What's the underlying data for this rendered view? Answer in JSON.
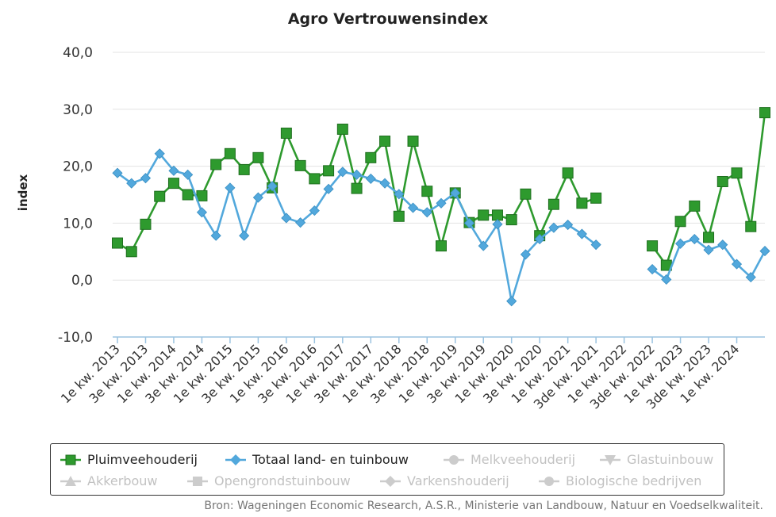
{
  "chart_data": {
    "type": "line",
    "title": "Agro Vertrouwensindex",
    "ylabel": "index",
    "xlabel": "",
    "ylim": [
      -10,
      40
    ],
    "yticks": [
      "-10,0",
      "0,0",
      "10,0",
      "20,0",
      "30,0",
      "40,0"
    ],
    "yticks_values": [
      -10,
      0,
      10,
      20,
      30,
      40
    ],
    "grid": true,
    "x_labels": [
      "1e kw. 2013",
      "3e kw. 2013",
      "1e kw. 2014",
      "3e kw. 2014",
      "1e kw. 2015",
      "3e kw. 2015",
      "1e kw. 2016",
      "3e kw. 2016",
      "1e kw. 2017",
      "3e kw. 2017",
      "1e kw. 2018",
      "3e kw. 2018",
      "1e kw. 2019",
      "3e kw. 2019",
      "1e kw. 2020",
      "3e kw. 2020",
      "1e kw. 2021",
      "3de kw. 2021",
      "1e kw. 2022",
      "3de kw. 2022",
      "1e kw. 2023",
      "3de kw. 2023",
      "1e kw. 2024"
    ],
    "series": [
      {
        "name": "Pluimveehouderij",
        "color": "#2e9a2e",
        "marker": "square",
        "values": [
          6.5,
          5.0,
          9.8,
          14.7,
          17.0,
          15.0,
          14.8,
          20.3,
          22.2,
          19.4,
          21.5,
          16.2,
          25.8,
          20.1,
          17.8,
          19.2,
          26.5,
          16.1,
          21.5,
          24.4,
          11.2,
          24.4,
          15.6,
          6.0,
          15.3,
          10.1,
          11.4,
          11.4,
          10.6,
          15.1,
          7.8,
          13.3,
          18.8,
          13.5,
          14.4,
          null,
          null,
          null,
          6.0,
          2.6,
          10.3,
          13.0,
          7.5,
          17.3,
          18.8,
          9.4,
          29.4
        ]
      },
      {
        "name": "Totaal land- en tuinbouw",
        "color": "#52a8dc",
        "marker": "diamond",
        "values": [
          18.8,
          17.0,
          17.9,
          22.2,
          19.2,
          18.5,
          11.9,
          7.8,
          16.2,
          7.8,
          14.5,
          16.5,
          10.9,
          10.1,
          12.2,
          16.0,
          19.0,
          18.5,
          17.8,
          17.0,
          15.1,
          12.7,
          11.9,
          13.5,
          15.3,
          10.0,
          6.0,
          9.8,
          -3.7,
          4.5,
          7.2,
          9.2,
          9.7,
          8.1,
          6.2,
          null,
          null,
          null,
          1.9,
          0.1,
          6.4,
          7.2,
          5.3,
          6.2,
          2.8,
          0.5,
          5.1
        ]
      }
    ]
  },
  "legend": {
    "items": [
      {
        "label": "Pluimveehouderij",
        "active": true,
        "color": "#2e9a2e",
        "icon": "square-marker-icon"
      },
      {
        "label": "Totaal land- en tuinbouw",
        "active": true,
        "color": "#52a8dc",
        "icon": "diamond-marker-icon"
      },
      {
        "label": "Melkveehouderij",
        "active": false,
        "color": "#cccccc",
        "icon": "circle-marker-icon"
      },
      {
        "label": "Glastuinbouw",
        "active": false,
        "color": "#cccccc",
        "icon": "triangle-down-marker-icon"
      },
      {
        "label": "Akkerbouw",
        "active": false,
        "color": "#cccccc",
        "icon": "triangle-up-marker-icon"
      },
      {
        "label": "Opengrondstuinbouw",
        "active": false,
        "color": "#cccccc",
        "icon": "square-marker-icon"
      },
      {
        "label": "Varkenshouderij",
        "active": false,
        "color": "#cccccc",
        "icon": "diamond-marker-icon"
      },
      {
        "label": "Biologische bedrijven",
        "active": false,
        "color": "#cccccc",
        "icon": "circle-marker-icon"
      }
    ]
  },
  "source": "Bron: Wageningen Economic Research, A.S.R., Ministerie van Landbouw, Natuur en Voedselkwaliteit."
}
